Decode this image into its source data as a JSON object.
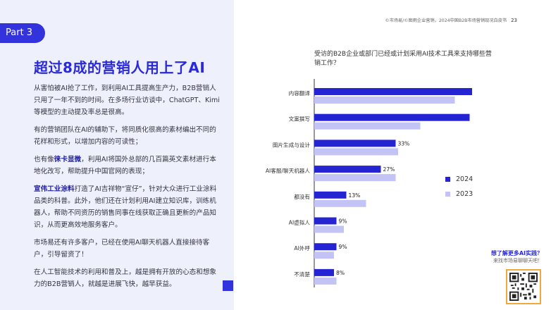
{
  "header": {
    "part_label": "Part 3",
    "source_note": "©市场易/©图雨企业营销，2024中国B2B市场营销现况白皮书",
    "page_number": "23"
  },
  "left": {
    "title": "超过8成的营销人用上了AI",
    "paragraphs": [
      "从害怕被AI抢了工作，到利用AI工具提高生产力，B2B营销人只用了一年不到的时间。在多场行业访谈中，ChatGPT、Kimi等模型的主动提及率总是很高。",
      "有的营销团队在AI的辅助下，将同质化很高的素材编出不同的花样和形式，以增加内容的可读性；"
    ],
    "p3": {
      "pre": "也有像",
      "highlight": "徕卡显微",
      "post": "，利用AI将国外总部的几百篇英文素材进行本地化改写，帮助提升中国官网的表现；"
    },
    "p4": {
      "highlight": "宣伟工业涂料",
      "post": "打造了AI吉祥物“宣仔”，针对大众进行工业涂料品类的科普。此外，他们还在计划利用AI建立知识库，训练机器人，帮助不同资历的销售同事在线获取正确且更新的产品知识，从而更高效地服务客户。"
    },
    "p5": "市场易还有许多客户，已经在使用AI聊天机器人直接接待客户，引导留资了！",
    "p6": "在人工智能技术的利用和普及上，越是拥有开放的心态和想象力的B2B营销人，就越是进展飞快，越早获益。"
  },
  "chart_data": {
    "type": "bar",
    "orientation": "horizontal",
    "title": "受访的B2B企业或部门已经或计划采用AI技术工具来支持哪些营销工作？",
    "categories": [
      "内容翻译",
      "文案撰写",
      "图片生成与设计",
      "AI客服/聊天机器人",
      "都没有",
      "AI虚拟人",
      "AI外呼",
      "不清楚"
    ],
    "series": [
      {
        "name": "2024",
        "color": "#2424d2",
        "values": [
          65,
          63,
          33,
          27,
          13,
          9,
          9,
          8
        ]
      },
      {
        "name": "2023",
        "color": "#c4c3f5",
        "values": [
          57,
          43,
          34,
          33,
          21,
          12,
          8,
          9
        ]
      }
    ],
    "value_suffix": "%",
    "xlim": [
      0,
      70
    ],
    "grid": false,
    "legend_position": "right"
  },
  "promo": {
    "title": "想了解更多AI实践？",
    "subtitle": "来找市场易聊聊天吧！"
  },
  "colors": {
    "accent": "#3333dd",
    "panel_bg": "#eef0fb",
    "series_2024": "#2424d2",
    "series_2023": "#c4c3f5"
  }
}
